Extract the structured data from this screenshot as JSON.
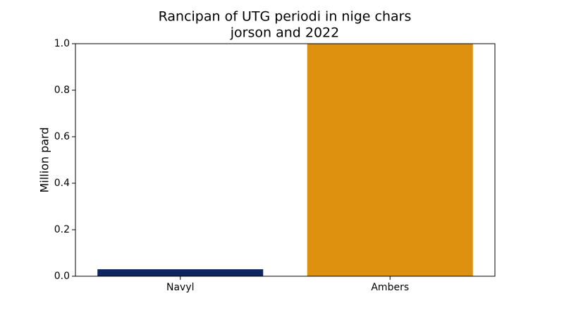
{
  "chart_data": {
    "type": "bar",
    "title": [
      "Rancipan of UTG periodi in nige chars",
      "jorson and 2022"
    ],
    "y_label": "Million pard",
    "categories": [
      "Navyl",
      "Ambers"
    ],
    "values": [
      0.03,
      1.0
    ],
    "colors": [
      "#0d2561",
      "#de900f"
    ],
    "ylim": [
      0,
      1.0
    ],
    "yticks": [
      {
        "value": 0,
        "label": "0.0"
      },
      0.2,
      0.4,
      0.6,
      0.8,
      {
        "value": 1.0,
        "label": "1.0"
      }
    ],
    "grid": false
  }
}
